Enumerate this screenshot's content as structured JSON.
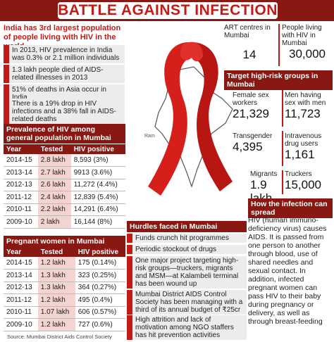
{
  "title": "BATTLE AGAINST INFECTION",
  "lead": "India has 3rd largest population of people living with HIV in the world",
  "facts": [
    "In 2013, HIV prevalence in India was 0.3% or 2.1 million individuals",
    "1.3 lakh people died of AIDS-related illnesses in 2013",
    "51% of deaths in Asia occur in India",
    "There is a 19% drop in HIV infections and a 38% fall in AIDS-related deaths"
  ],
  "prevalence": {
    "heading": "Prevalence of HIV among general population in Mumbai",
    "columns": [
      "Year",
      "Tested",
      "HIV positive"
    ],
    "rows": [
      [
        "2014-15",
        "2.8 lakh",
        "8,593 (3%)"
      ],
      [
        "2013-14",
        "2.7 lakh",
        "9913 (3.6%)"
      ],
      [
        "2012-13",
        "2.6 lakh",
        "11,272 (4.4%)"
      ],
      [
        "2011-12",
        "2.4 lakh",
        "12,839 (5.4%)"
      ],
      [
        "2010-11",
        "2.2 lakh",
        "14,291 (6.4%)"
      ],
      [
        "2009-10",
        "2 lakh",
        "16,144 (8%)"
      ]
    ]
  },
  "pregnant": {
    "heading": "Pregnant women in Mumbai",
    "columns": [
      "Year",
      "Tested",
      "HIV positive"
    ],
    "rows": [
      [
        "2014-15",
        "1.2 lakh",
        "175 (0.14%)"
      ],
      [
        "2013-14",
        "1.3 lakh",
        "323 (0.25%)"
      ],
      [
        "2012-13",
        "1.3 lakh",
        "364 (0.27%)"
      ],
      [
        "2011-12",
        "1.2 lakh",
        "495 (0.4%)"
      ],
      [
        "2010-11",
        "1.07 lakh",
        "606 (0.57%)"
      ],
      [
        "2009-10",
        "1.2 lakh",
        "727 (0.6%)"
      ]
    ]
  },
  "source": "Source: Mumbai District Aids Control Society",
  "map_label": "Ram",
  "top_stats": [
    {
      "label": "ART centres in Mumbai",
      "value": "14"
    },
    {
      "label": "People living with HIV in Mumbai",
      "value": "30,000"
    }
  ],
  "target": {
    "heading": "Target high-risk groups in Mumbai",
    "groups": [
      {
        "label": "Female sex workers",
        "value": "21,329"
      },
      {
        "label": "Men having sex with men",
        "value": "11,723"
      },
      {
        "label": "Transgender",
        "value": "4,395"
      },
      {
        "label": "Intravenous drug users",
        "value": "1,161"
      },
      {
        "label": "Migrants",
        "value": "1.9 lakh"
      },
      {
        "label": "Truckers",
        "value": "15,000"
      }
    ]
  },
  "hurdles": {
    "heading": "Hurdles faced in Mumbai",
    "items": [
      "Funds crunch hit programmes",
      "Periodic stockout of drugs",
      "One major project targeting high-risk groups—truckers, migrants and MSM—at Kalambeli terminal has been wound up",
      "Mumbai District AIDS Control Society has been managing with a third of its annual budget of ₹25cr",
      "High attrition and lack of motivation among NGO staffers has hit prevention activities"
    ]
  },
  "spread": {
    "heading": "How the infection can spread",
    "text": "HIV (human immuno-deficiency virus) causes AIDS. It is passed from one person to another through blood, use of shared needles and sexual contact. In addition, infected pregnant women can pass HIV to their baby during pregnancy or delivery, as well as through breast-feeding"
  },
  "colors": {
    "accent": "#c41a15",
    "dark": "#8a1812",
    "ribbon": "#d61e1b"
  }
}
